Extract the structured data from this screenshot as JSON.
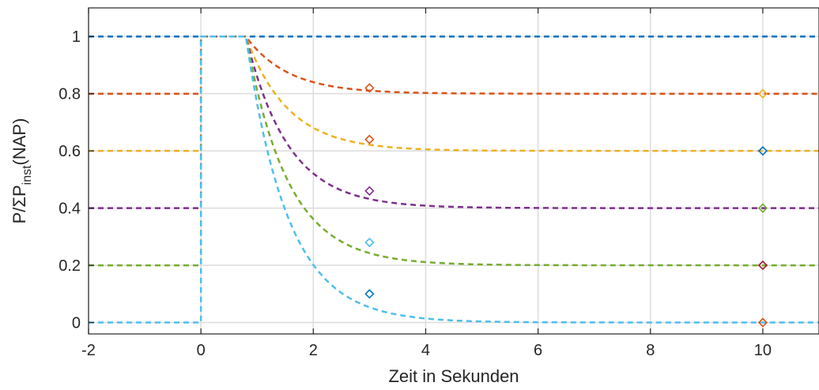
{
  "chart_data": {
    "type": "line",
    "title": "",
    "xlabel": "Zeit in Sekunden",
    "ylabel": {
      "main": "P/ΣP",
      "subscript": "inst",
      "suffix": "(NAP)"
    },
    "xlim": [
      -2,
      11
    ],
    "ylim": [
      -0.04,
      1.1
    ],
    "xticks": [
      -2,
      0,
      2,
      4,
      6,
      8,
      10
    ],
    "xtick_labels": [
      "-2",
      "0",
      "2",
      "4",
      "6",
      "8",
      "10"
    ],
    "yticks": [
      0,
      0.2,
      0.4,
      0.6,
      0.8,
      1
    ],
    "ytick_labels": [
      "0",
      "0.2",
      "0.4",
      "0.6",
      "0.8",
      "1"
    ],
    "grid": true,
    "line_style": "dashed",
    "step_time": 0,
    "decay_start": 0.8,
    "series": [
      {
        "final": 1.0,
        "color": "#0072BD",
        "initial": 1.0,
        "tau": 1.0
      },
      {
        "final": 0.8,
        "color": "#D95319",
        "initial": 0.8,
        "tau": 0.75
      },
      {
        "final": 0.6,
        "color": "#EDB120",
        "initial": 0.6,
        "tau": 0.75
      },
      {
        "final": 0.4,
        "color": "#7E2F8E",
        "initial": 0.4,
        "tau": 0.75
      },
      {
        "final": 0.2,
        "color": "#77AC30",
        "initial": 0.2,
        "tau": 0.75
      },
      {
        "final": 0.0,
        "color": "#4DBEEE",
        "initial": 0.0,
        "tau": 0.75
      }
    ],
    "markers": [
      {
        "x": 3,
        "y": 0.82,
        "color": "#D95319"
      },
      {
        "x": 3,
        "y": 0.64,
        "color": "#D95319"
      },
      {
        "x": 3,
        "y": 0.46,
        "color": "#7E2F8E"
      },
      {
        "x": 3,
        "y": 0.28,
        "color": "#4DBEEE"
      },
      {
        "x": 3,
        "y": 0.1,
        "color": "#0072BD"
      },
      {
        "x": 10,
        "y": 0.8,
        "color": "#EDB120"
      },
      {
        "x": 10,
        "y": 0.6,
        "color": "#0072BD"
      },
      {
        "x": 10,
        "y": 0.4,
        "color": "#77AC30"
      },
      {
        "x": 10,
        "y": 0.2,
        "color": "#A2142F"
      },
      {
        "x": 10,
        "y": 0.0,
        "color": "#D95319"
      }
    ]
  }
}
